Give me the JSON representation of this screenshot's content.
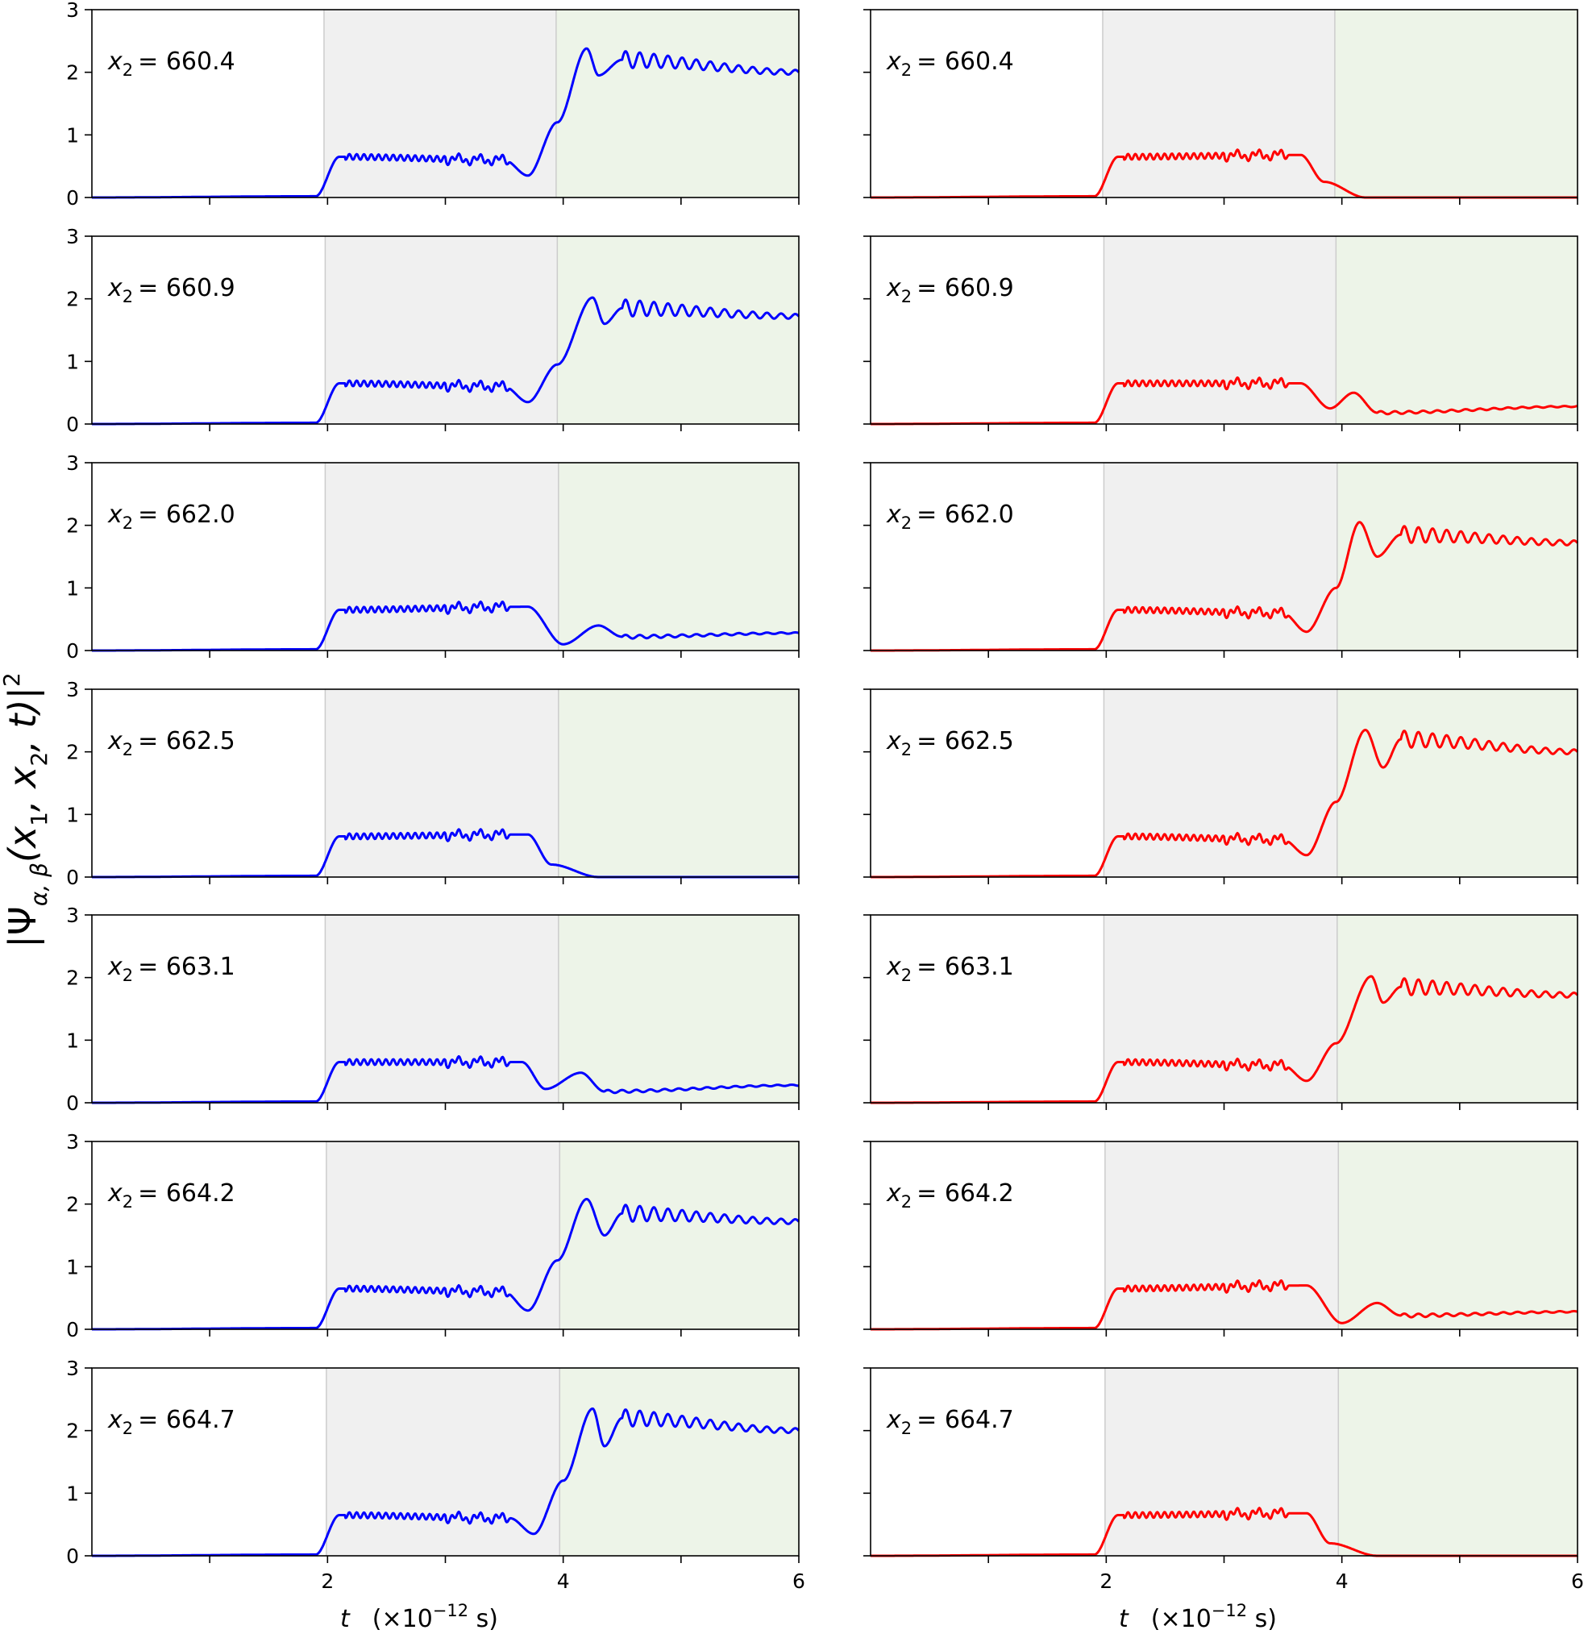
{
  "colors": {
    "left_series": "#0000ff",
    "right_series": "#ff0000",
    "region_2_to_4": "#f0f0f0",
    "region_4_to_6": "#edf4e8",
    "region_edge": "#cccccc",
    "axes": "#000000"
  },
  "figure": {
    "ylabel": {
      "base": "|Ψ",
      "sub": "α, β",
      "body": "(x",
      "sub1": "1",
      "mid": ", x",
      "sub2": "2",
      "end": ", t)|",
      "sup": "2"
    },
    "xlabel": {
      "var": "t",
      "open": "(×10",
      "exp": "−12",
      "close": " s)"
    },
    "x_ticks": [
      "2",
      "4",
      "6"
    ],
    "y_ticks": [
      "0",
      "1",
      "2",
      "3"
    ]
  },
  "chart_data": [
    {
      "type": "line",
      "column": "left",
      "label": {
        "var": "x",
        "sub": "2",
        "value": "= 660.4"
      },
      "xlim": [
        0,
        6
      ],
      "ylim": [
        0,
        3
      ],
      "shaded_regions": [
        [
          1.97,
          3.94
        ],
        [
          3.94,
          6.0
        ]
      ],
      "final_level": 2.0,
      "series": [
        {
          "color": "blue",
          "x": [
            0,
            1.9,
            2.1,
            3.5,
            3.7,
            3.95,
            4.2,
            4.3,
            4.5,
            6.0
          ],
          "y": [
            0,
            0.02,
            0.65,
            0.6,
            0.35,
            1.2,
            2.38,
            1.95,
            2.2,
            2.0
          ]
        }
      ]
    },
    {
      "type": "line",
      "column": "right",
      "label": {
        "var": "x",
        "sub": "2",
        "value": "= 660.4"
      },
      "xlim": [
        0,
        6
      ],
      "ylim": [
        0,
        3
      ],
      "shaded_regions": [
        [
          1.97,
          3.94
        ],
        [
          3.94,
          6.0
        ]
      ],
      "final_level": 0.0,
      "series": [
        {
          "color": "red",
          "x": [
            0,
            1.9,
            2.1,
            3.65,
            3.85,
            4.2,
            6.0
          ],
          "y": [
            0,
            0.02,
            0.65,
            0.68,
            0.25,
            0.0,
            0.0
          ]
        }
      ]
    },
    {
      "type": "line",
      "column": "left",
      "label": {
        "var": "x",
        "sub": "2",
        "value": "= 660.9"
      },
      "xlim": [
        0,
        6
      ],
      "ylim": [
        0,
        3
      ],
      "shaded_regions": [
        [
          1.98,
          3.95
        ],
        [
          3.95,
          6.0
        ]
      ],
      "final_level": 1.72,
      "series": [
        {
          "color": "blue",
          "x": [
            0,
            1.9,
            2.1,
            3.5,
            3.7,
            3.95,
            4.25,
            4.35,
            4.5,
            6.0
          ],
          "y": [
            0,
            0.02,
            0.65,
            0.6,
            0.35,
            0.95,
            2.02,
            1.6,
            1.85,
            1.72
          ]
        }
      ]
    },
    {
      "type": "line",
      "column": "right",
      "label": {
        "var": "x",
        "sub": "2",
        "value": "= 660.9"
      },
      "xlim": [
        0,
        6
      ],
      "ylim": [
        0,
        3
      ],
      "shaded_regions": [
        [
          1.98,
          3.95
        ],
        [
          3.95,
          6.0
        ]
      ],
      "final_level": 0.28,
      "series": [
        {
          "color": "red",
          "x": [
            0,
            1.9,
            2.1,
            3.65,
            3.9,
            4.1,
            4.3,
            6.0
          ],
          "y": [
            0,
            0.02,
            0.65,
            0.65,
            0.25,
            0.5,
            0.18,
            0.28
          ]
        }
      ]
    },
    {
      "type": "line",
      "column": "left",
      "label": {
        "var": "x",
        "sub": "2",
        "value": "= 662.0"
      },
      "xlim": [
        0,
        6
      ],
      "ylim": [
        0,
        3
      ],
      "shaded_regions": [
        [
          1.98,
          3.96
        ],
        [
          3.96,
          6.0
        ]
      ],
      "final_level": 0.28,
      "series": [
        {
          "color": "blue",
          "x": [
            0,
            1.9,
            2.1,
            3.7,
            4.0,
            4.3,
            4.5,
            6.0
          ],
          "y": [
            0,
            0.02,
            0.65,
            0.7,
            0.1,
            0.4,
            0.22,
            0.28
          ]
        }
      ]
    },
    {
      "type": "line",
      "column": "right",
      "label": {
        "var": "x",
        "sub": "2",
        "value": "= 662.0"
      },
      "xlim": [
        0,
        6
      ],
      "ylim": [
        0,
        3
      ],
      "shaded_regions": [
        [
          1.98,
          3.96
        ],
        [
          3.96,
          6.0
        ]
      ],
      "final_level": 1.72,
      "series": [
        {
          "color": "red",
          "x": [
            0,
            1.9,
            2.1,
            3.5,
            3.7,
            3.95,
            4.15,
            4.3,
            4.5,
            6.0
          ],
          "y": [
            0,
            0.02,
            0.65,
            0.6,
            0.3,
            1.0,
            2.05,
            1.5,
            1.85,
            1.72
          ]
        }
      ]
    },
    {
      "type": "line",
      "column": "left",
      "label": {
        "var": "x",
        "sub": "2",
        "value": "= 662.5"
      },
      "xlim": [
        0,
        6
      ],
      "ylim": [
        0,
        3
      ],
      "shaded_regions": [
        [
          1.98,
          3.96
        ],
        [
          3.96,
          6.0
        ]
      ],
      "final_level": 0.0,
      "series": [
        {
          "color": "blue",
          "x": [
            0,
            1.9,
            2.1,
            3.7,
            3.9,
            4.3,
            6.0
          ],
          "y": [
            0,
            0.02,
            0.65,
            0.68,
            0.2,
            0.0,
            0.0
          ]
        }
      ]
    },
    {
      "type": "line",
      "column": "right",
      "label": {
        "var": "x",
        "sub": "2",
        "value": "= 662.5"
      },
      "xlim": [
        0,
        6
      ],
      "ylim": [
        0,
        3
      ],
      "shaded_regions": [
        [
          1.98,
          3.96
        ],
        [
          3.96,
          6.0
        ]
      ],
      "final_level": 2.0,
      "series": [
        {
          "color": "red",
          "x": [
            0,
            1.9,
            2.1,
            3.5,
            3.7,
            3.95,
            4.2,
            4.35,
            4.5,
            6.0
          ],
          "y": [
            0,
            0.02,
            0.65,
            0.6,
            0.35,
            1.2,
            2.35,
            1.75,
            2.2,
            2.0
          ]
        }
      ]
    },
    {
      "type": "line",
      "column": "left",
      "label": {
        "var": "x",
        "sub": "2",
        "value": "= 663.1"
      },
      "xlim": [
        0,
        6
      ],
      "ylim": [
        0,
        3
      ],
      "shaded_regions": [
        [
          1.98,
          3.96
        ],
        [
          3.96,
          6.0
        ]
      ],
      "final_level": 0.28,
      "series": [
        {
          "color": "blue",
          "x": [
            0,
            1.9,
            2.1,
            3.65,
            3.85,
            4.15,
            4.35,
            6.0
          ],
          "y": [
            0,
            0.02,
            0.65,
            0.65,
            0.22,
            0.48,
            0.18,
            0.28
          ]
        }
      ]
    },
    {
      "type": "line",
      "column": "right",
      "label": {
        "var": "x",
        "sub": "2",
        "value": "= 663.1"
      },
      "xlim": [
        0,
        6
      ],
      "ylim": [
        0,
        3
      ],
      "shaded_regions": [
        [
          1.98,
          3.96
        ],
        [
          3.96,
          6.0
        ]
      ],
      "final_level": 1.72,
      "series": [
        {
          "color": "red",
          "x": [
            0,
            1.9,
            2.1,
            3.5,
            3.7,
            3.95,
            4.25,
            4.35,
            4.5,
            6.0
          ],
          "y": [
            0,
            0.02,
            0.65,
            0.6,
            0.35,
            0.95,
            2.02,
            1.6,
            1.85,
            1.72
          ]
        }
      ]
    },
    {
      "type": "line",
      "column": "left",
      "label": {
        "var": "x",
        "sub": "2",
        "value": "= 664.2"
      },
      "xlim": [
        0,
        6
      ],
      "ylim": [
        0,
        3
      ],
      "shaded_regions": [
        [
          1.99,
          3.97
        ],
        [
          3.97,
          6.0
        ]
      ],
      "final_level": 1.72,
      "series": [
        {
          "color": "blue",
          "x": [
            0,
            1.9,
            2.1,
            3.5,
            3.7,
            3.95,
            4.2,
            4.35,
            4.5,
            6.0
          ],
          "y": [
            0,
            0.02,
            0.65,
            0.6,
            0.3,
            1.1,
            2.08,
            1.5,
            1.85,
            1.72
          ]
        }
      ]
    },
    {
      "type": "line",
      "column": "right",
      "label": {
        "var": "x",
        "sub": "2",
        "value": "= 664.2"
      },
      "xlim": [
        0,
        6
      ],
      "ylim": [
        0,
        3
      ],
      "shaded_regions": [
        [
          1.99,
          3.97
        ],
        [
          3.97,
          6.0
        ]
      ],
      "final_level": 0.28,
      "series": [
        {
          "color": "red",
          "x": [
            0,
            1.9,
            2.1,
            3.7,
            4.0,
            4.3,
            4.5,
            6.0
          ],
          "y": [
            0,
            0.02,
            0.65,
            0.7,
            0.1,
            0.42,
            0.22,
            0.28
          ]
        }
      ]
    },
    {
      "type": "line",
      "column": "left",
      "label": {
        "var": "x",
        "sub": "2",
        "value": "= 664.7"
      },
      "xlim": [
        0,
        6
      ],
      "ylim": [
        0,
        3
      ],
      "shaded_regions": [
        [
          1.99,
          3.97
        ],
        [
          3.97,
          6.0
        ]
      ],
      "final_level": 2.0,
      "series": [
        {
          "color": "blue",
          "x": [
            0,
            1.9,
            2.1,
            3.55,
            3.75,
            4.0,
            4.25,
            4.35,
            4.5,
            6.0
          ],
          "y": [
            0,
            0.02,
            0.65,
            0.6,
            0.35,
            1.2,
            2.35,
            1.75,
            2.2,
            2.0
          ]
        }
      ]
    },
    {
      "type": "line",
      "column": "right",
      "label": {
        "var": "x",
        "sub": "2",
        "value": "= 664.7"
      },
      "xlim": [
        0,
        6
      ],
      "ylim": [
        0,
        3
      ],
      "shaded_regions": [
        [
          1.99,
          3.97
        ],
        [
          3.97,
          6.0
        ]
      ],
      "final_level": 0.0,
      "series": [
        {
          "color": "red",
          "x": [
            0,
            1.9,
            2.1,
            3.7,
            3.9,
            4.3,
            6.0
          ],
          "y": [
            0,
            0.02,
            0.65,
            0.68,
            0.2,
            0.0,
            0.0
          ]
        }
      ]
    }
  ]
}
